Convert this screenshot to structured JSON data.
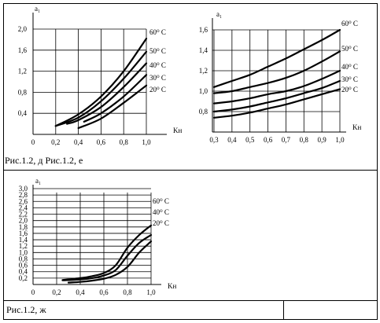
{
  "captions": {
    "top": "Рис.1.2, д Рис.1.2, е",
    "bottom": "Рис.1.2, ж"
  },
  "chart_data": [
    {
      "type": "line",
      "ylabel": "a₁",
      "xlabel": "Kн",
      "xlim": [
        0,
        1.0
      ],
      "ylim": [
        0,
        2.0
      ],
      "xticks": [
        0,
        0.2,
        0.4,
        0.6,
        0.8,
        1.0
      ],
      "xtick_labels": [
        "0",
        "0,2",
        "0,4",
        "0,6",
        "0,8",
        "1,0"
      ],
      "yticks": [
        0.4,
        0.8,
        1.2,
        1.6,
        2.0
      ],
      "ytick_labels": [
        "0,4",
        "0,8",
        "1,2",
        "1,6",
        "2,0"
      ],
      "grid": true,
      "series": [
        {
          "name": "60⁰ С",
          "x": [
            0.2,
            0.4,
            0.6,
            0.8,
            1.0
          ],
          "y": [
            0.16,
            0.38,
            0.72,
            1.2,
            1.82
          ]
        },
        {
          "name": "50⁰ С",
          "x": [
            0.2,
            0.4,
            0.6,
            0.8,
            1.0
          ],
          "y": [
            0.16,
            0.32,
            0.63,
            1.06,
            1.57
          ]
        },
        {
          "name": "40⁰ С",
          "x": [
            0.3,
            0.4,
            0.6,
            0.8,
            1.0
          ],
          "y": [
            0.2,
            0.27,
            0.52,
            0.9,
            1.35
          ]
        },
        {
          "name": "30⁰ С",
          "x": [
            0.45,
            0.6,
            0.8,
            1.0
          ],
          "y": [
            0.24,
            0.4,
            0.72,
            1.13
          ]
        },
        {
          "name": "20⁰ С",
          "x": [
            0.4,
            0.6,
            0.8,
            1.0
          ],
          "y": [
            0.12,
            0.3,
            0.6,
            0.93
          ]
        }
      ]
    },
    {
      "type": "line",
      "ylabel": "a₁",
      "xlabel": "Kн",
      "xlim": [
        0.3,
        1.0
      ],
      "ylim": [
        0.6,
        1.6
      ],
      "xticks": [
        0.3,
        0.4,
        0.5,
        0.6,
        0.7,
        0.8,
        0.9,
        1.0
      ],
      "xtick_labels": [
        "0,3",
        "0,4",
        "0,5",
        "0,6",
        "0,7",
        "0,8",
        "0,9",
        "1,0"
      ],
      "yticks": [
        0.8,
        1.0,
        1.2,
        1.4,
        1.6
      ],
      "ytick_labels": [
        "0,8",
        "1,0",
        "1,2",
        "1,4",
        "1,6"
      ],
      "grid": true,
      "series": [
        {
          "name": "60⁰ С",
          "x": [
            0.3,
            0.4,
            0.5,
            0.6,
            0.7,
            0.8,
            0.9,
            1.0
          ],
          "y": [
            1.04,
            1.1,
            1.16,
            1.24,
            1.32,
            1.41,
            1.5,
            1.6
          ]
        },
        {
          "name": "50⁰ С",
          "x": [
            0.3,
            0.4,
            0.5,
            0.6,
            0.7,
            0.8,
            0.9,
            1.0
          ],
          "y": [
            0.98,
            1.0,
            1.04,
            1.08,
            1.13,
            1.2,
            1.29,
            1.39
          ]
        },
        {
          "name": "40⁰ С",
          "x": [
            0.3,
            0.4,
            0.5,
            0.6,
            0.7,
            0.8,
            0.9,
            1.0
          ],
          "y": [
            0.88,
            0.9,
            0.93,
            0.97,
            1.0,
            1.05,
            1.12,
            1.2
          ]
        },
        {
          "name": "30⁰ С",
          "x": [
            0.3,
            0.4,
            0.5,
            0.6,
            0.7,
            0.8,
            0.9,
            1.0
          ],
          "y": [
            0.8,
            0.82,
            0.85,
            0.89,
            0.93,
            0.98,
            1.03,
            1.1
          ]
        },
        {
          "name": "20⁰ С",
          "x": [
            0.3,
            0.4,
            0.5,
            0.6,
            0.7,
            0.8,
            0.9,
            1.0
          ],
          "y": [
            0.74,
            0.76,
            0.79,
            0.83,
            0.87,
            0.92,
            0.97,
            1.02
          ]
        }
      ]
    },
    {
      "type": "line",
      "ylabel": "a₁",
      "xlabel": "Kн",
      "xlim": [
        0,
        1.0
      ],
      "ylim": [
        0,
        3.0
      ],
      "xticks": [
        0,
        0.2,
        0.4,
        0.6,
        0.8,
        1.0
      ],
      "xtick_labels": [
        "0",
        "0,2",
        "0,4",
        "0,6",
        "0,8",
        "1,0"
      ],
      "yticks": [
        0.2,
        0.4,
        0.6,
        0.8,
        1.0,
        1.2,
        1.4,
        1.6,
        1.8,
        2.0,
        2.2,
        2.4,
        2.6,
        2.8,
        3.0
      ],
      "ytick_labels": [
        "0,2",
        "0,4",
        "0,6",
        "0,8",
        "1,0",
        "1,2",
        "1,4",
        "1,6",
        "1,8",
        "2,0",
        "2,2",
        "2,4",
        "2,6",
        "2,8",
        "3,0"
      ],
      "grid": true,
      "series": [
        {
          "name": "60⁰ С",
          "x": [
            0.25,
            0.4,
            0.5,
            0.6,
            0.7,
            0.8,
            0.9,
            1.0
          ],
          "y": [
            0.14,
            0.2,
            0.26,
            0.36,
            0.6,
            1.15,
            1.55,
            1.85
          ]
        },
        {
          "name": "40⁰ С",
          "x": [
            0.25,
            0.4,
            0.5,
            0.6,
            0.7,
            0.8,
            0.9,
            1.0
          ],
          "y": [
            0.13,
            0.16,
            0.2,
            0.28,
            0.45,
            0.9,
            1.3,
            1.55
          ]
        },
        {
          "name": "20⁰ С",
          "x": [
            0.3,
            0.4,
            0.5,
            0.6,
            0.7,
            0.8,
            0.9,
            1.0
          ],
          "y": [
            0.06,
            0.08,
            0.12,
            0.18,
            0.3,
            0.55,
            1.0,
            1.35
          ]
        }
      ]
    }
  ]
}
